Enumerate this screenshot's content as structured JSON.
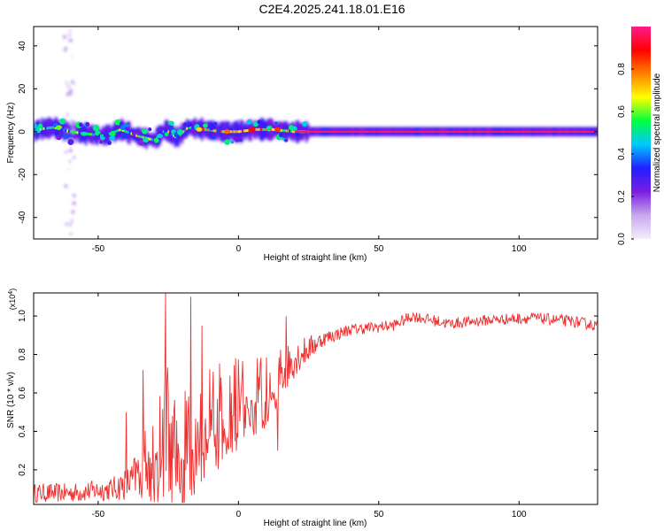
{
  "page": {
    "title": "C2E4.2025.241.18.01.E16"
  },
  "chart_data": [
    {
      "type": "heatmap",
      "name": "spectrogram",
      "xlabel": "Height of straight line (km)",
      "ylabel": "Frequency (Hz)",
      "xlim": [
        -73,
        128
      ],
      "ylim": [
        -50,
        49
      ],
      "x_ticks": [
        "-50",
        "0",
        "50",
        "100"
      ],
      "y_ticks": [
        "40",
        "20",
        "0",
        "-20",
        "-40"
      ],
      "x_tick_values": [
        -50,
        0,
        50,
        100
      ],
      "y_tick_values": [
        40,
        20,
        0,
        -20,
        -40
      ],
      "ridge": [
        {
          "x": -72,
          "f": 1
        },
        {
          "x": -66,
          "f": 2
        },
        {
          "x": -60,
          "f": 0
        },
        {
          "x": -54,
          "f": -1
        },
        {
          "x": -48,
          "f": -2
        },
        {
          "x": -42,
          "f": 1
        },
        {
          "x": -36,
          "f": -2
        },
        {
          "x": -30,
          "f": -4
        },
        {
          "x": -26,
          "f": 1
        },
        {
          "x": -22,
          "f": -3
        },
        {
          "x": -18,
          "f": 2
        },
        {
          "x": -12,
          "f": 1
        },
        {
          "x": -6,
          "f": 0
        },
        {
          "x": 0,
          "f": 0
        },
        {
          "x": 6,
          "f": 1
        },
        {
          "x": 12,
          "f": 1
        },
        {
          "x": 20,
          "f": 0
        },
        {
          "x": 128,
          "f": 0
        }
      ],
      "hotspots": [
        {
          "x": -64,
          "f": 2,
          "a": 0.6
        },
        {
          "x": -55,
          "f": -1,
          "a": 0.5
        },
        {
          "x": -45,
          "f": -3,
          "a": 0.45
        },
        {
          "x": -40,
          "f": 3,
          "a": 0.4
        },
        {
          "x": -33,
          "f": -4,
          "a": 0.5
        },
        {
          "x": -28,
          "f": -2,
          "a": 0.45
        },
        {
          "x": -24,
          "f": 4,
          "a": 0.5
        },
        {
          "x": -14,
          "f": 1,
          "a": 0.7
        },
        {
          "x": -4,
          "f": 0,
          "a": 0.8
        },
        {
          "x": 5,
          "f": 1,
          "a": 0.9
        },
        {
          "x": 14,
          "f": 1,
          "a": 0.85
        }
      ]
    },
    {
      "type": "colorbar",
      "name": "amplitude-colorbar",
      "label": "Normalized spectral amplitude",
      "range": [
        0,
        1
      ],
      "ticks": [
        "0.0",
        "0.2",
        "0.4",
        "0.6",
        "0.8"
      ],
      "tick_values": [
        0.0,
        0.2,
        0.4,
        0.6,
        0.8
      ],
      "colors": [
        "#f4ecfb",
        "#c8a8ee",
        "#7a1ee0",
        "#2020ff",
        "#00c8ff",
        "#00ff40",
        "#ffff00",
        "#ff8000",
        "#ff0000",
        "#ff1a8c"
      ]
    },
    {
      "type": "line",
      "name": "snr",
      "xlabel": "Height of straight line (km)",
      "ylabel": "SNR (10 * v/v)",
      "exponent_label": "(x10",
      "exponent_sup": "4",
      "exponent_close": ")",
      "xlim": [
        -73,
        128
      ],
      "ylim": [
        0.02,
        1.12
      ],
      "x_ticks": [
        "-50",
        "0",
        "50",
        "100"
      ],
      "y_ticks": [
        "1.0",
        "0.8",
        "0.6",
        "0.4",
        "0.2"
      ],
      "x_tick_values": [
        -50,
        0,
        50,
        100
      ],
      "y_tick_values": [
        1.0,
        0.8,
        0.6,
        0.4,
        0.2
      ],
      "color": "#ee3030",
      "envelope": [
        {
          "x": -73,
          "base": 0.08,
          "amp": 0.05
        },
        {
          "x": -60,
          "base": 0.08,
          "amp": 0.05
        },
        {
          "x": -45,
          "base": 0.1,
          "amp": 0.06
        },
        {
          "x": -38,
          "base": 0.14,
          "amp": 0.1
        },
        {
          "x": -30,
          "base": 0.3,
          "amp": 0.3
        },
        {
          "x": -26,
          "base": 0.35,
          "amp": 0.45
        },
        {
          "x": -20,
          "base": 0.3,
          "amp": 0.3
        },
        {
          "x": -10,
          "base": 0.45,
          "amp": 0.3
        },
        {
          "x": 0,
          "base": 0.55,
          "amp": 0.25
        },
        {
          "x": 10,
          "base": 0.62,
          "amp": 0.2
        },
        {
          "x": 20,
          "base": 0.78,
          "amp": 0.1
        },
        {
          "x": 30,
          "base": 0.88,
          "amp": 0.04
        },
        {
          "x": 40,
          "base": 0.93,
          "amp": 0.03
        },
        {
          "x": 55,
          "base": 0.95,
          "amp": 0.03
        },
        {
          "x": 62,
          "base": 1.0,
          "amp": 0.03
        },
        {
          "x": 75,
          "base": 0.96,
          "amp": 0.03
        },
        {
          "x": 90,
          "base": 0.98,
          "amp": 0.03
        },
        {
          "x": 105,
          "base": 0.99,
          "amp": 0.03
        },
        {
          "x": 120,
          "base": 0.97,
          "amp": 0.03
        },
        {
          "x": 128,
          "base": 0.95,
          "amp": 0.03
        }
      ],
      "spikes": [
        {
          "x": -26,
          "v": 1.12
        },
        {
          "x": -17,
          "v": 1.1
        },
        {
          "x": -13,
          "v": 0.95
        },
        {
          "x": -40,
          "v": 0.5
        },
        {
          "x": -34,
          "v": 0.72
        },
        {
          "x": 14,
          "v": 0.3
        },
        {
          "x": 17,
          "v": 1.0
        }
      ]
    }
  ]
}
